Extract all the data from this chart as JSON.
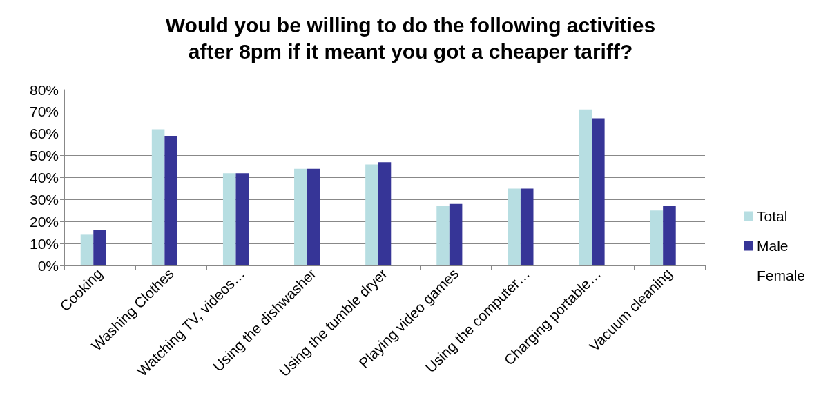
{
  "chart_data": {
    "type": "bar",
    "title": "Would you be willing to do the following activities\nafter 8pm if it meant you got a cheaper tariff?",
    "categories": [
      "Cooking",
      "Washing Clothes",
      "Watching TV, videos…",
      "Using the dishwasher",
      "Using the tumble dryer",
      "Playing video games",
      "Using the computer…",
      "Charging portable…",
      "Vacuum cleaning"
    ],
    "series": [
      {
        "name": "Total",
        "color": "#b7dee2",
        "values": [
          14,
          62,
          42,
          44,
          46,
          27,
          35,
          71,
          25
        ]
      },
      {
        "name": "Male",
        "color": "#363597",
        "values": [
          16,
          59,
          42,
          44,
          47,
          28,
          35,
          67,
          27
        ]
      },
      {
        "name": "Female",
        "values": [
          null,
          null,
          null,
          null,
          null,
          null,
          null,
          null,
          null
        ]
      }
    ],
    "ylim": [
      0,
      80
    ],
    "yticks": [
      {
        "value": 0,
        "label": "0%"
      },
      {
        "value": 10,
        "label": "10%"
      },
      {
        "value": 20,
        "label": "20%"
      },
      {
        "value": 30,
        "label": "30%"
      },
      {
        "value": 40,
        "label": "40%"
      },
      {
        "value": 50,
        "label": "50%"
      },
      {
        "value": 60,
        "label": "60%"
      },
      {
        "value": 70,
        "label": "70%"
      },
      {
        "value": 80,
        "label": "80%"
      }
    ],
    "grid": "y",
    "legend": "right"
  }
}
